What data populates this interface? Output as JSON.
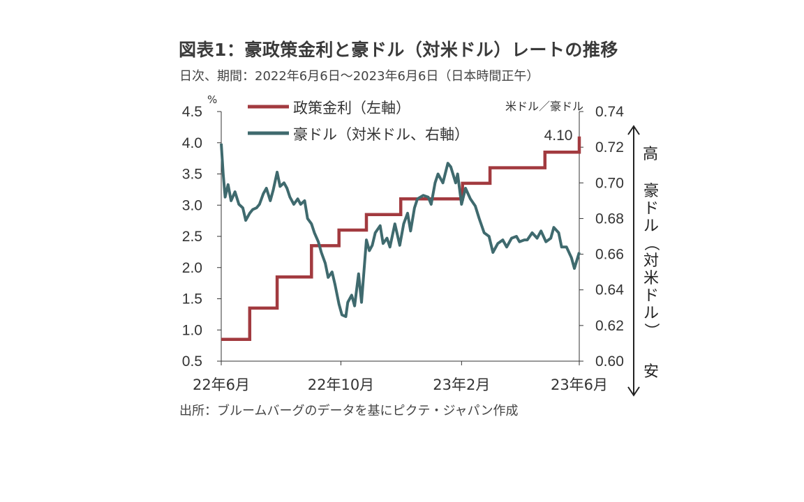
{
  "header": {
    "title": "図表1：豪政策金利と豪ドル（対米ドル）レートの推移",
    "subtitle": "日次、期間：2022年6月6日～2023年6月6日（日本時間正午）"
  },
  "footer": {
    "source": "出所：ブルームバーグのデータを基にピクテ・ジャパン作成"
  },
  "annotations": {
    "direction_high": "高",
    "direction_low": "安",
    "right_axis_side_label": "豪ドル（対米ドル）",
    "last_value": "4.10"
  },
  "colors": {
    "policy_rate": "#a23a3f",
    "aud": "#3f6a6e",
    "axis": "#333333"
  },
  "chart_data": {
    "type": "line",
    "x_ticks": [
      "22年6月",
      "22年10月",
      "23年2月",
      "23年6月"
    ],
    "x_tick_dates": [
      "2022-06-06",
      "2022-10-06",
      "2023-02-06",
      "2023-06-06"
    ],
    "x_range": [
      "2022-06-06",
      "2023-06-06"
    ],
    "left_axis": {
      "label": "%",
      "ylim": [
        0.5,
        4.5
      ],
      "ticks": [
        "4.5",
        "4.0",
        "3.5",
        "3.0",
        "2.5",
        "2.0",
        "1.5",
        "1.0",
        "0.5"
      ]
    },
    "right_axis": {
      "label": "米ドル／豪ドル",
      "ylim": [
        0.6,
        0.74
      ],
      "ticks": [
        "0.74",
        "0.72",
        "0.70",
        "0.68",
        "0.66",
        "0.64",
        "0.62",
        "0.60"
      ]
    },
    "legend": [
      "政策金利（左軸）",
      "豪ドル（対米ドル、右軸）"
    ],
    "legend_position": "top",
    "grid": false,
    "series": [
      {
        "name": "政策金利（左軸）",
        "axis": "left",
        "step": true,
        "x": [
          "2022-06-06",
          "2022-07-05",
          "2022-08-02",
          "2022-09-06",
          "2022-10-04",
          "2022-11-01",
          "2022-12-06",
          "2023-02-07",
          "2023-03-07",
          "2023-05-02",
          "2023-06-06"
        ],
        "values": [
          0.85,
          1.35,
          1.85,
          2.35,
          2.6,
          2.85,
          3.1,
          3.35,
          3.6,
          3.85,
          4.1
        ]
      },
      {
        "name": "豪ドル（対米ドル、右軸）",
        "axis": "right",
        "x": [
          "2022-06-06",
          "2022-06-08",
          "2022-06-10",
          "2022-06-13",
          "2022-06-16",
          "2022-06-20",
          "2022-06-24",
          "2022-06-28",
          "2022-07-01",
          "2022-07-05",
          "2022-07-08",
          "2022-07-12",
          "2022-07-15",
          "2022-07-19",
          "2022-07-22",
          "2022-07-26",
          "2022-07-29",
          "2022-08-02",
          "2022-08-05",
          "2022-08-09",
          "2022-08-12",
          "2022-08-15",
          "2022-08-19",
          "2022-08-23",
          "2022-08-26",
          "2022-08-30",
          "2022-09-02",
          "2022-09-06",
          "2022-09-09",
          "2022-09-13",
          "2022-09-16",
          "2022-09-20",
          "2022-09-23",
          "2022-09-27",
          "2022-09-30",
          "2022-10-04",
          "2022-10-07",
          "2022-10-11",
          "2022-10-13",
          "2022-10-17",
          "2022-10-20",
          "2022-10-24",
          "2022-10-27",
          "2022-11-01",
          "2022-11-04",
          "2022-11-07",
          "2022-11-10",
          "2022-11-15",
          "2022-11-18",
          "2022-11-22",
          "2022-11-25",
          "2022-11-30",
          "2022-12-05",
          "2022-12-09",
          "2022-12-13",
          "2022-12-16",
          "2022-12-20",
          "2022-12-23",
          "2022-12-29",
          "2023-01-03",
          "2023-01-06",
          "2023-01-10",
          "2023-01-13",
          "2023-01-18",
          "2023-01-23",
          "2023-01-26",
          "2023-01-31",
          "2023-02-02",
          "2023-02-06",
          "2023-02-10",
          "2023-02-15",
          "2023-02-20",
          "2023-02-24",
          "2023-03-01",
          "2023-03-06",
          "2023-03-10",
          "2023-03-15",
          "2023-03-20",
          "2023-03-24",
          "2023-03-29",
          "2023-04-03",
          "2023-04-06",
          "2023-04-11",
          "2023-04-14",
          "2023-04-19",
          "2023-04-24",
          "2023-04-28",
          "2023-05-03",
          "2023-05-08",
          "2023-05-11",
          "2023-05-16",
          "2023-05-19",
          "2023-05-24",
          "2023-05-29",
          "2023-06-01",
          "2023-06-06"
        ],
        "values": [
          0.722,
          0.705,
          0.692,
          0.699,
          0.69,
          0.695,
          0.688,
          0.686,
          0.679,
          0.683,
          0.685,
          0.686,
          0.688,
          0.694,
          0.697,
          0.69,
          0.696,
          0.706,
          0.698,
          0.7,
          0.697,
          0.692,
          0.688,
          0.691,
          0.688,
          0.69,
          0.68,
          0.677,
          0.672,
          0.667,
          0.661,
          0.655,
          0.647,
          0.65,
          0.643,
          0.632,
          0.626,
          0.625,
          0.633,
          0.637,
          0.631,
          0.649,
          0.633,
          0.668,
          0.662,
          0.665,
          0.672,
          0.676,
          0.666,
          0.669,
          0.664,
          0.677,
          0.665,
          0.677,
          0.683,
          0.673,
          0.686,
          0.691,
          0.693,
          0.692,
          0.688,
          0.7,
          0.705,
          0.7,
          0.711,
          0.709,
          0.7,
          0.705,
          0.688,
          0.697,
          0.691,
          0.687,
          0.68,
          0.672,
          0.67,
          0.661,
          0.666,
          0.668,
          0.664,
          0.669,
          0.67,
          0.667,
          0.668,
          0.668,
          0.672,
          0.669,
          0.673,
          0.667,
          0.669,
          0.675,
          0.672,
          0.664,
          0.664,
          0.658,
          0.652,
          0.661
        ]
      }
    ]
  }
}
